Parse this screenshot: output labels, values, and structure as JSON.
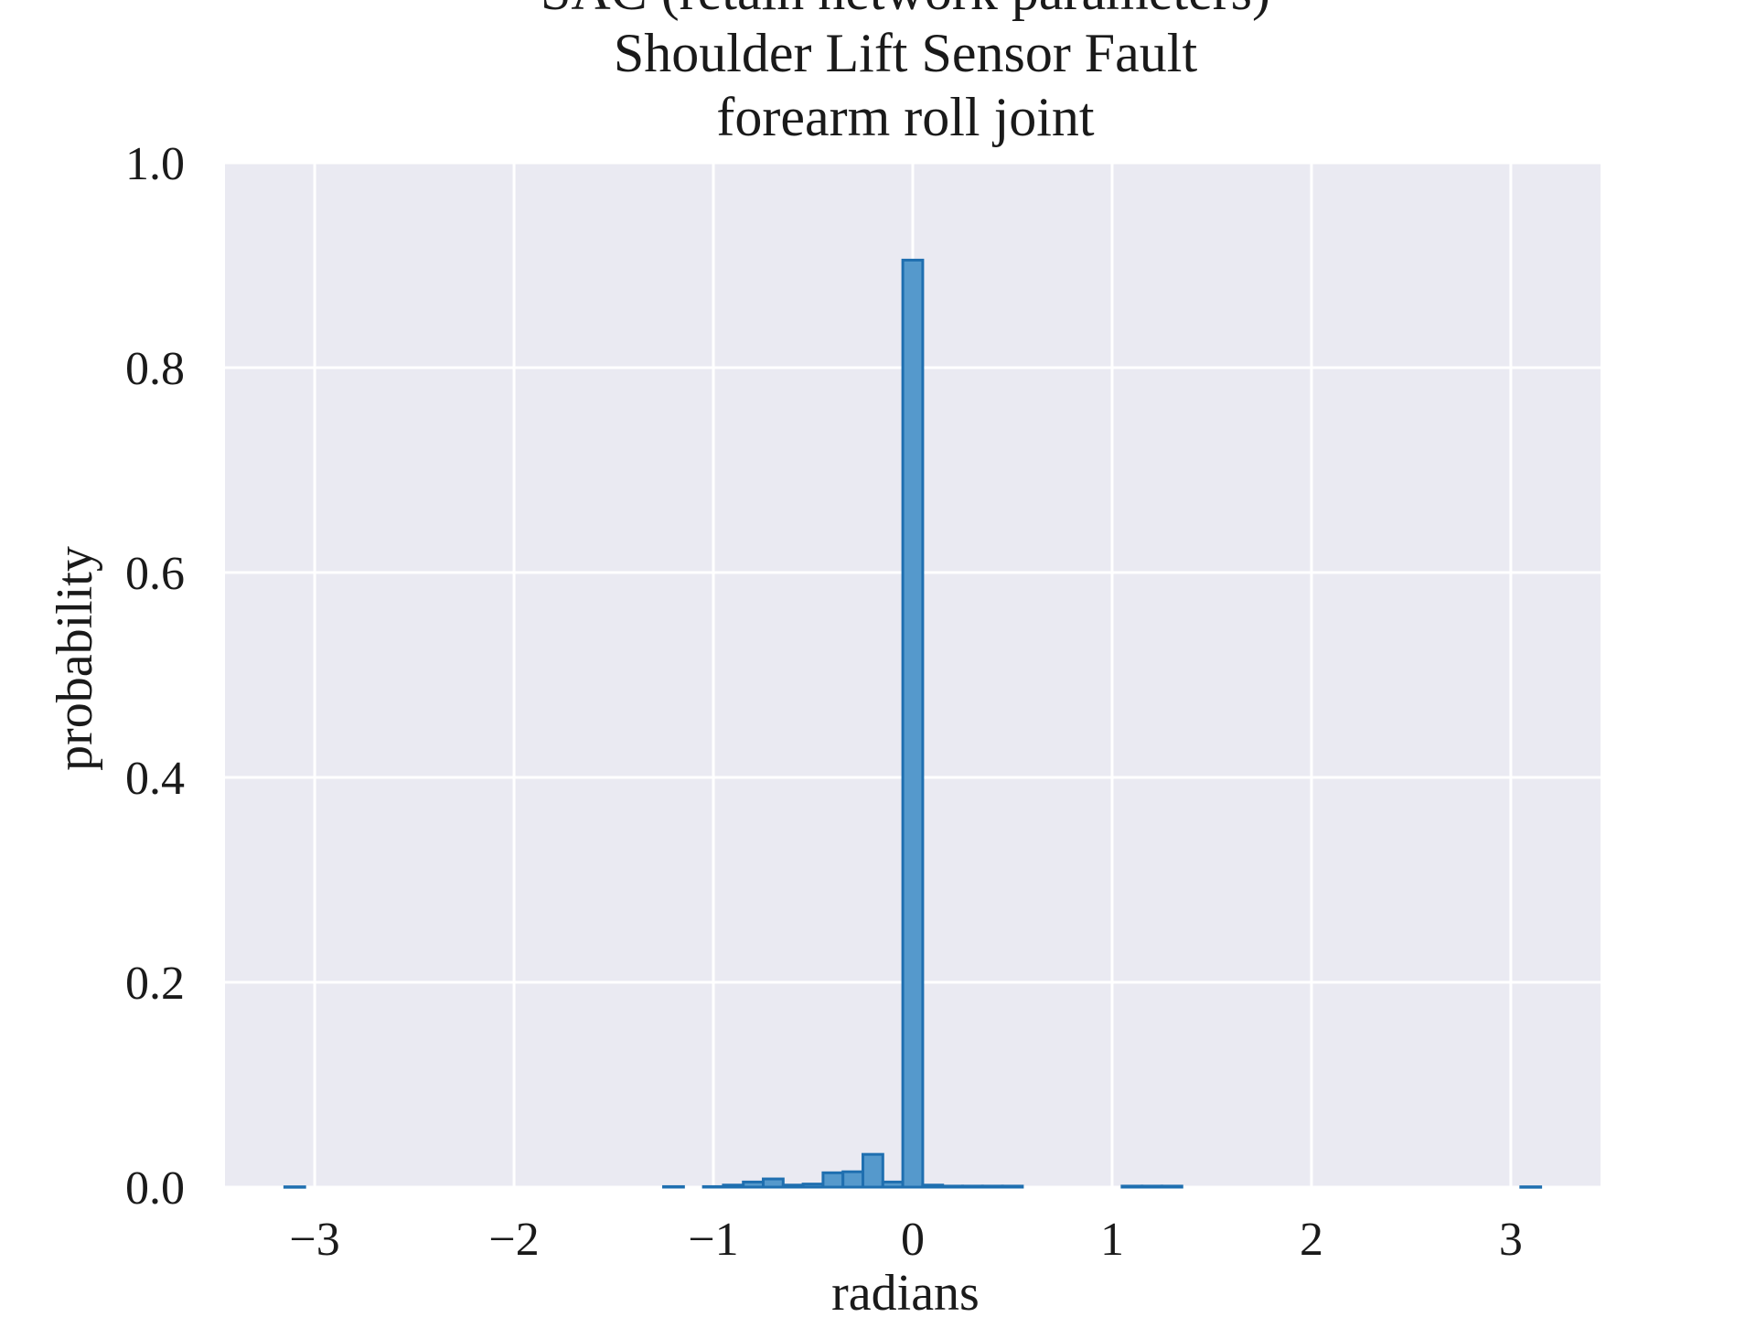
{
  "chart_data": {
    "type": "bar",
    "title_lines": [
      "SAC (retain network parameters)",
      "Shoulder Lift Sensor Fault",
      "forearm roll joint"
    ],
    "xlabel": "radians",
    "ylabel": "probability",
    "xlim": [
      -3.45,
      3.45
    ],
    "ylim": [
      0,
      1.0
    ],
    "xticks": [
      -3,
      -2,
      -1,
      0,
      1,
      2,
      3
    ],
    "xtick_labels": [
      "−3",
      "−2",
      "−1",
      "0",
      "1",
      "2",
      "3"
    ],
    "yticks": [
      0.0,
      0.2,
      0.4,
      0.6,
      0.8,
      1.0
    ],
    "ytick_labels": [
      "0.0",
      "0.2",
      "0.4",
      "0.6",
      "0.8",
      "1.0"
    ],
    "grid": true,
    "bin_width": 0.1,
    "bins": [
      {
        "x0": -3.15,
        "x1": -3.05,
        "y": 0.0003
      },
      {
        "x0": -1.25,
        "x1": -1.15,
        "y": 0.0005
      },
      {
        "x0": -1.05,
        "x1": -0.95,
        "y": 0.0005
      },
      {
        "x0": -0.95,
        "x1": -0.85,
        "y": 0.002
      },
      {
        "x0": -0.85,
        "x1": -0.75,
        "y": 0.005
      },
      {
        "x0": -0.75,
        "x1": -0.65,
        "y": 0.008
      },
      {
        "x0": -0.65,
        "x1": -0.55,
        "y": 0.002
      },
      {
        "x0": -0.55,
        "x1": -0.45,
        "y": 0.003
      },
      {
        "x0": -0.45,
        "x1": -0.35,
        "y": 0.014
      },
      {
        "x0": -0.35,
        "x1": -0.25,
        "y": 0.015
      },
      {
        "x0": -0.25,
        "x1": -0.15,
        "y": 0.032
      },
      {
        "x0": -0.15,
        "x1": -0.05,
        "y": 0.005
      },
      {
        "x0": -0.05,
        "x1": 0.05,
        "y": 0.905
      },
      {
        "x0": 0.05,
        "x1": 0.15,
        "y": 0.002
      },
      {
        "x0": 0.15,
        "x1": 0.25,
        "y": 0.001
      },
      {
        "x0": 0.25,
        "x1": 0.35,
        "y": 0.001
      },
      {
        "x0": 0.35,
        "x1": 0.45,
        "y": 0.001
      },
      {
        "x0": 0.45,
        "x1": 0.55,
        "y": 0.001
      },
      {
        "x0": 1.05,
        "x1": 1.15,
        "y": 0.001
      },
      {
        "x0": 1.15,
        "x1": 1.25,
        "y": 0.001
      },
      {
        "x0": 1.25,
        "x1": 1.35,
        "y": 0.001
      },
      {
        "x0": 3.05,
        "x1": 3.15,
        "y": 0.0003
      }
    ],
    "colors": {
      "background": "#eaeaf2",
      "grid": "#ffffff",
      "bar_fill": "#5599cc",
      "bar_edge": "#1f6fb0"
    }
  }
}
